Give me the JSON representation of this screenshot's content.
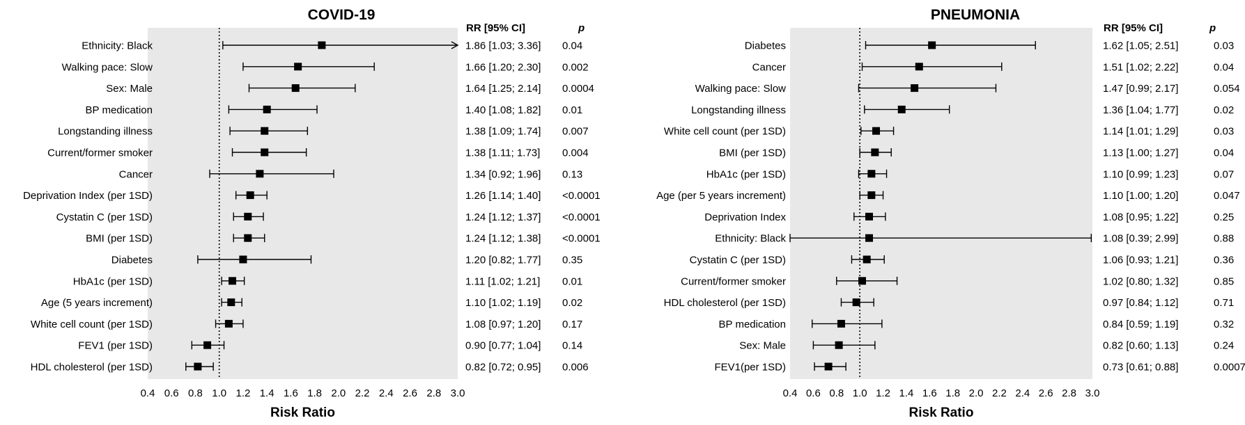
{
  "chart_data": [
    {
      "type": "forest",
      "title": "COVID-19",
      "xlabel": "Risk Ratio",
      "xlim": [
        0.4,
        3.0
      ],
      "xticks": [
        "0.4",
        "0.6",
        "0.8",
        "1.0",
        "1.2",
        "1.4",
        "1.6",
        "1.8",
        "2.0",
        "2.2",
        "2.4",
        "2.6",
        "2.8",
        "3.0"
      ],
      "reference_line": 1.0,
      "background": "#e8e8e8",
      "rr_header": "RR  [95% CI]",
      "p_header": "p",
      "rows": [
        {
          "label": "Ethnicity: Black",
          "rr": 1.86,
          "lo": 1.03,
          "hi": 3.36,
          "rr_text": "1.86 [1.03; 3.36]",
          "p": "0.04",
          "arrow": true
        },
        {
          "label": "Walking pace: Slow",
          "rr": 1.66,
          "lo": 1.2,
          "hi": 2.3,
          "rr_text": "1.66 [1.20; 2.30]",
          "p": "0.002"
        },
        {
          "label": "Sex: Male",
          "rr": 1.64,
          "lo": 1.25,
          "hi": 2.14,
          "rr_text": "1.64 [1.25; 2.14]",
          "p": "0.0004"
        },
        {
          "label": "BP medication",
          "rr": 1.4,
          "lo": 1.08,
          "hi": 1.82,
          "rr_text": "1.40 [1.08; 1.82]",
          "p": "0.01"
        },
        {
          "label": "Longstanding illness",
          "rr": 1.38,
          "lo": 1.09,
          "hi": 1.74,
          "rr_text": "1.38 [1.09; 1.74]",
          "p": "0.007"
        },
        {
          "label": "Current/former smoker",
          "rr": 1.38,
          "lo": 1.11,
          "hi": 1.73,
          "rr_text": "1.38 [1.11; 1.73]",
          "p": "0.004"
        },
        {
          "label": "Cancer",
          "rr": 1.34,
          "lo": 0.92,
          "hi": 1.96,
          "rr_text": "1.34 [0.92; 1.96]",
          "p": "0.13"
        },
        {
          "label": "Deprivation Index (per 1SD)",
          "rr": 1.26,
          "lo": 1.14,
          "hi": 1.4,
          "rr_text": "1.26 [1.14; 1.40]",
          "p": "<0.0001"
        },
        {
          "label": "Cystatin C (per 1SD)",
          "rr": 1.24,
          "lo": 1.12,
          "hi": 1.37,
          "rr_text": "1.24 [1.12; 1.37]",
          "p": "<0.0001"
        },
        {
          "label": "BMI (per 1SD)",
          "rr": 1.24,
          "lo": 1.12,
          "hi": 1.38,
          "rr_text": "1.24 [1.12; 1.38]",
          "p": "<0.0001"
        },
        {
          "label": "Diabetes",
          "rr": 1.2,
          "lo": 0.82,
          "hi": 1.77,
          "rr_text": "1.20 [0.82; 1.77]",
          "p": "0.35"
        },
        {
          "label": "HbA1c (per 1SD)",
          "rr": 1.11,
          "lo": 1.02,
          "hi": 1.21,
          "rr_text": "1.11 [1.02; 1.21]",
          "p": "0.01"
        },
        {
          "label": "Age (5 years increment)",
          "rr": 1.1,
          "lo": 1.02,
          "hi": 1.19,
          "rr_text": "1.10 [1.02; 1.19]",
          "p": "0.02"
        },
        {
          "label": "White cell count (per 1SD)",
          "rr": 1.08,
          "lo": 0.97,
          "hi": 1.2,
          "rr_text": "1.08 [0.97; 1.20]",
          "p": "0.17"
        },
        {
          "label": "FEV1 (per 1SD)",
          "rr": 0.9,
          "lo": 0.77,
          "hi": 1.04,
          "rr_text": "0.90 [0.77; 1.04]",
          "p": "0.14"
        },
        {
          "label": "HDL cholesterol (per 1SD)",
          "rr": 0.82,
          "lo": 0.72,
          "hi": 0.95,
          "rr_text": "0.82 [0.72; 0.95]",
          "p": "0.006"
        }
      ]
    },
    {
      "type": "forest",
      "title": "PNEUMONIA",
      "xlabel": "Risk Ratio",
      "xlim": [
        0.4,
        3.0
      ],
      "xticks": [
        "0.4",
        "0.6",
        "0.8",
        "1.0",
        "1.2",
        "1.4",
        "1.6",
        "1.8",
        "2.0",
        "2.2",
        "2.4",
        "2.6",
        "2.8",
        "3.0"
      ],
      "reference_line": 1.0,
      "background": "#e8e8e8",
      "rr_header": "RR  [95% CI]",
      "p_header": "p",
      "rows": [
        {
          "label": "Diabetes",
          "rr": 1.62,
          "lo": 1.05,
          "hi": 2.51,
          "rr_text": "1.62 [1.05; 2.51]",
          "p": "0.03"
        },
        {
          "label": "Cancer",
          "rr": 1.51,
          "lo": 1.02,
          "hi": 2.22,
          "rr_text": "1.51 [1.02; 2.22]",
          "p": "0.04"
        },
        {
          "label": "Walking pace: Slow",
          "rr": 1.47,
          "lo": 0.99,
          "hi": 2.17,
          "rr_text": "1.47 [0.99; 2.17]",
          "p": "0.054"
        },
        {
          "label": "Longstanding illness",
          "rr": 1.36,
          "lo": 1.04,
          "hi": 1.77,
          "rr_text": "1.36 [1.04; 1.77]",
          "p": "0.02"
        },
        {
          "label": "White cell count (per 1SD)",
          "rr": 1.14,
          "lo": 1.01,
          "hi": 1.29,
          "rr_text": "1.14 [1.01; 1.29]",
          "p": "0.03"
        },
        {
          "label": "BMI (per 1SD)",
          "rr": 1.13,
          "lo": 1.0,
          "hi": 1.27,
          "rr_text": "1.13 [1.00; 1.27]",
          "p": "0.04"
        },
        {
          "label": "HbA1c (per 1SD)",
          "rr": 1.1,
          "lo": 0.99,
          "hi": 1.23,
          "rr_text": "1.10 [0.99; 1.23]",
          "p": "0.07"
        },
        {
          "label": "Age (per 5 years increment)",
          "rr": 1.1,
          "lo": 1.0,
          "hi": 1.2,
          "rr_text": "1.10 [1.00; 1.20]",
          "p": "0.047"
        },
        {
          "label": "Deprivation Index",
          "rr": 1.08,
          "lo": 0.95,
          "hi": 1.22,
          "rr_text": "1.08 [0.95; 1.22]",
          "p": "0.25"
        },
        {
          "label": "Ethnicity: Black",
          "rr": 1.08,
          "lo": 0.39,
          "hi": 2.99,
          "rr_text": "1.08 [0.39; 2.99]",
          "p": "0.88"
        },
        {
          "label": "Cystatin C (per 1SD)",
          "rr": 1.06,
          "lo": 0.93,
          "hi": 1.21,
          "rr_text": "1.06 [0.93; 1.21]",
          "p": "0.36"
        },
        {
          "label": "Current/former smoker",
          "rr": 1.02,
          "lo": 0.8,
          "hi": 1.32,
          "rr_text": "1.02 [0.80; 1.32]",
          "p": "0.85"
        },
        {
          "label": "HDL cholesterol (per 1SD)",
          "rr": 0.97,
          "lo": 0.84,
          "hi": 1.12,
          "rr_text": "0.97 [0.84; 1.12]",
          "p": "0.71"
        },
        {
          "label": "BP medication",
          "rr": 0.84,
          "lo": 0.59,
          "hi": 1.19,
          "rr_text": "0.84 [0.59; 1.19]",
          "p": "0.32"
        },
        {
          "label": "Sex: Male",
          "rr": 0.82,
          "lo": 0.6,
          "hi": 1.13,
          "rr_text": "0.82 [0.60; 1.13]",
          "p": "0.24"
        },
        {
          "label": "FEV1(per 1SD)",
          "rr": 0.73,
          "lo": 0.61,
          "hi": 0.88,
          "rr_text": "0.73 [0.61; 0.88]",
          "p": "0.0007"
        }
      ]
    }
  ]
}
